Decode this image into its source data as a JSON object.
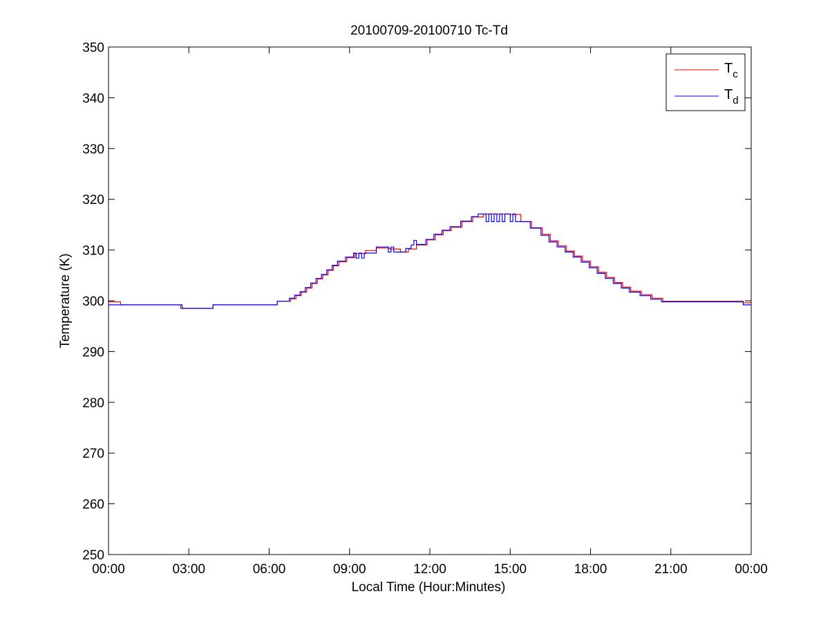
{
  "chart_data": {
    "type": "line",
    "title": "20100709-20100710 Tc-Td",
    "xlabel": "Local Time (Hour:Minutes)",
    "ylabel": "Temperature (K)",
    "xlim": [
      0,
      24
    ],
    "ylim": [
      250,
      350
    ],
    "x_ticks": [
      0,
      3,
      6,
      9,
      12,
      15,
      18,
      21,
      24
    ],
    "x_tick_labels": [
      "00:00",
      "03:00",
      "06:00",
      "09:00",
      "12:00",
      "15:00",
      "18:00",
      "21:00",
      "00:00"
    ],
    "y_ticks": [
      250,
      260,
      270,
      280,
      290,
      300,
      310,
      320,
      330,
      340,
      350
    ],
    "y_tick_labels": [
      "250",
      "260",
      "270",
      "280",
      "290",
      "300",
      "310",
      "320",
      "330",
      "340",
      "350"
    ],
    "grid": false,
    "legend_position": "top-right",
    "series": [
      {
        "name": "Tc",
        "legend_main": "T",
        "legend_sub": "c",
        "color": "#ff0000",
        "x": [
          0,
          0.45,
          0.45,
          2.2,
          2.7,
          2.7,
          3.9,
          3.9,
          6.3,
          6.3,
          6.8,
          7.0,
          7.2,
          7.4,
          7.6,
          7.8,
          8.0,
          8.2,
          8.4,
          8.6,
          8.9,
          9.2,
          9.6,
          10.0,
          10.5,
          10.9,
          11.2,
          11.5,
          11.9,
          12.2,
          12.5,
          12.8,
          13.2,
          13.6,
          14.0,
          14.5,
          15.0,
          15.4,
          15.8,
          16.2,
          16.5,
          16.8,
          17.1,
          17.4,
          17.7,
          18.0,
          18.3,
          18.6,
          18.9,
          19.2,
          19.5,
          19.9,
          20.3,
          20.7,
          20.7,
          23.7,
          23.7,
          24
        ],
        "y": [
          299.8,
          299.8,
          299.2,
          299.2,
          298.9,
          298.5,
          298.5,
          299.2,
          299.2,
          299.9,
          300.4,
          301.0,
          301.7,
          302.5,
          303.4,
          304.3,
          305.1,
          306.0,
          306.9,
          307.7,
          308.5,
          309.3,
          309.9,
          310.4,
          310.2,
          309.6,
          310.2,
          311.0,
          312.0,
          313.0,
          313.8,
          314.5,
          315.6,
          316.5,
          317.1,
          317.1,
          317.0,
          315.6,
          314.4,
          313.1,
          311.8,
          310.8,
          309.8,
          308.8,
          307.8,
          306.7,
          305.6,
          304.6,
          303.6,
          302.7,
          301.9,
          301.2,
          300.5,
          299.9,
          299.9,
          299.9,
          299.6,
          299.6
        ]
      },
      {
        "name": "Td",
        "legend_main": "T",
        "legend_sub": "d",
        "color": "#0000ff",
        "x": [
          0,
          2.75,
          2.75,
          3.9,
          3.9,
          6.3,
          6.3,
          6.75,
          6.95,
          7.15,
          7.35,
          7.55,
          7.75,
          7.95,
          8.15,
          8.35,
          8.55,
          8.85,
          9.15,
          9.25,
          9.35,
          9.45,
          9.55,
          10.0,
          10.45,
          10.55,
          10.65,
          10.9,
          11.1,
          11.3,
          11.4,
          11.5,
          11.85,
          12.15,
          12.45,
          12.75,
          13.15,
          13.55,
          13.8,
          14.0,
          14.1,
          14.2,
          14.3,
          14.4,
          14.5,
          14.6,
          14.7,
          14.8,
          14.9,
          15.0,
          15.1,
          15.2,
          15.35,
          15.75,
          16.15,
          16.45,
          16.75,
          17.05,
          17.35,
          17.65,
          17.95,
          18.25,
          18.55,
          18.85,
          19.15,
          19.45,
          19.85,
          20.25,
          20.65,
          20.65,
          23.7,
          23.7,
          24
        ],
        "y": [
          299.2,
          299.2,
          298.5,
          298.5,
          299.2,
          299.2,
          299.9,
          300.5,
          301.1,
          301.8,
          302.6,
          303.5,
          304.4,
          305.2,
          306.1,
          307.0,
          307.8,
          308.6,
          309.4,
          308.4,
          309.4,
          308.4,
          309.4,
          310.6,
          309.6,
          310.6,
          309.6,
          309.6,
          310.3,
          311.0,
          311.9,
          311.1,
          312.1,
          313.1,
          313.9,
          314.6,
          315.7,
          316.6,
          317.1,
          317.1,
          315.6,
          317.1,
          315.6,
          317.1,
          315.6,
          317.1,
          315.6,
          317.1,
          317.1,
          315.6,
          317.1,
          315.6,
          315.6,
          314.3,
          312.9,
          311.6,
          310.6,
          309.6,
          308.6,
          307.6,
          306.5,
          305.4,
          304.4,
          303.4,
          302.5,
          301.7,
          301.0,
          300.3,
          299.8,
          299.8,
          299.8,
          299.2,
          299.2
        ]
      }
    ]
  }
}
